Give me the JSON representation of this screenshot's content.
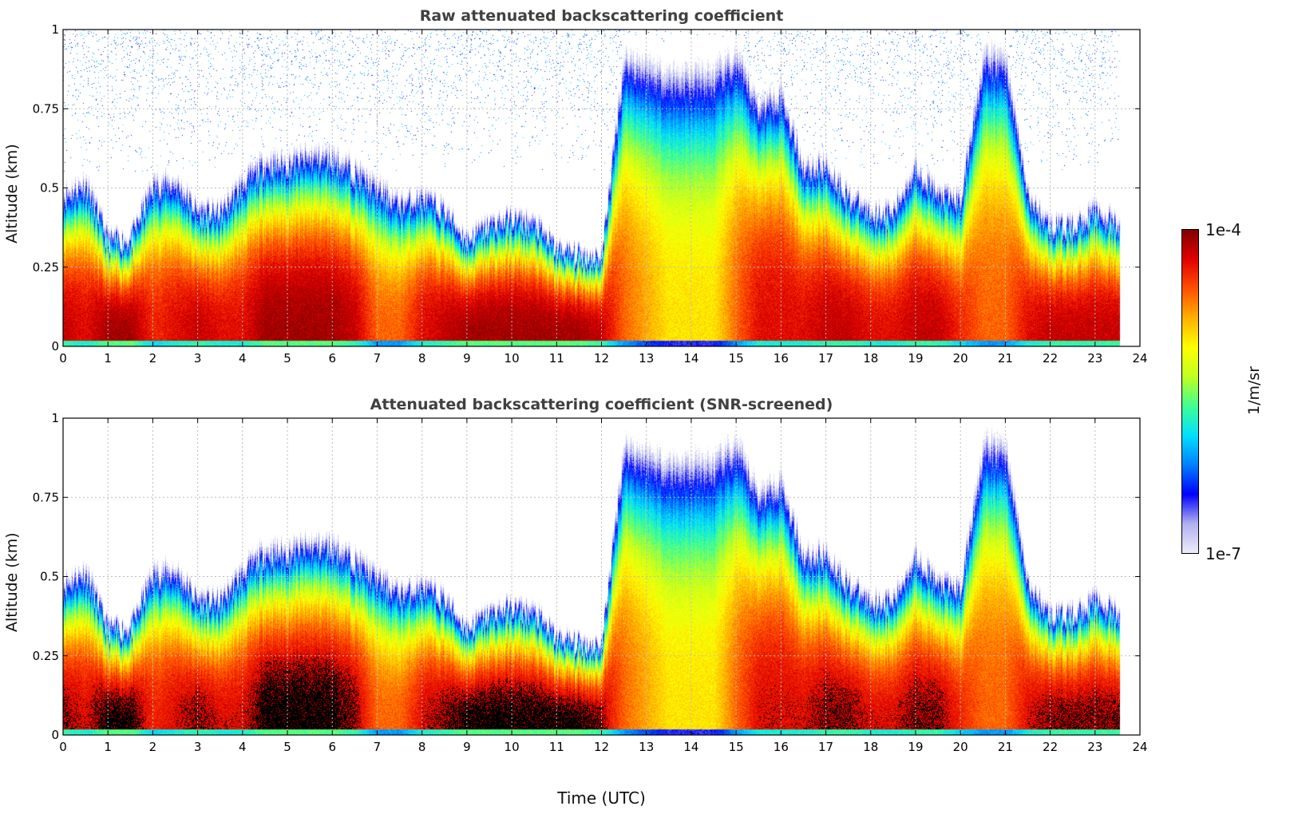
{
  "chart_data": [
    {
      "type": "heatmap",
      "title": "Raw attenuated backscattering coefficient",
      "xlabel": "",
      "ylabel": "Altitude (km)",
      "xlim": [
        0,
        24
      ],
      "ylim": [
        0,
        1
      ],
      "xticks": [
        0,
        1,
        2,
        3,
        4,
        5,
        6,
        7,
        8,
        9,
        10,
        11,
        12,
        13,
        14,
        15,
        16,
        17,
        18,
        19,
        20,
        21,
        22,
        23,
        24
      ],
      "yticks": [
        0,
        0.25,
        0.5,
        0.75,
        1
      ],
      "ytick_labels": [
        "0",
        "0.25",
        "0.5",
        "0.75",
        "1"
      ],
      "grid": true,
      "screened": false
    },
    {
      "type": "heatmap",
      "title": "Attenuated backscattering coefficient (SNR-screened)",
      "xlabel": "Time (UTC)",
      "ylabel": "Altitude (km)",
      "xlim": [
        0,
        24
      ],
      "ylim": [
        0,
        1
      ],
      "xticks": [
        0,
        1,
        2,
        3,
        4,
        5,
        6,
        7,
        8,
        9,
        10,
        11,
        12,
        13,
        14,
        15,
        16,
        17,
        18,
        19,
        20,
        21,
        22,
        23,
        24
      ],
      "yticks": [
        0,
        0.25,
        0.5,
        0.75,
        1
      ],
      "ytick_labels": [
        "0",
        "0.25",
        "0.5",
        "0.75",
        "1"
      ],
      "grid": true,
      "screened": true
    }
  ],
  "field": {
    "time_step_h": 0.5,
    "data_end_h": 23.55,
    "layer_top_km": [
      0.5,
      0.55,
      0.35,
      0.35,
      0.55,
      0.55,
      0.45,
      0.45,
      0.55,
      0.6,
      0.6,
      0.62,
      0.62,
      0.58,
      0.55,
      0.5,
      0.5,
      0.45,
      0.35,
      0.4,
      0.42,
      0.4,
      0.32,
      0.3,
      0.3,
      1.0,
      1.0,
      1.0,
      1.0,
      1.0,
      1.0,
      0.8,
      0.85,
      0.6,
      0.6,
      0.5,
      0.45,
      0.45,
      0.6,
      0.5,
      0.5,
      1.0,
      1.0,
      0.5,
      0.4,
      0.4,
      0.45,
      0.4
    ],
    "core_log10_max": [
      -4.2,
      -4.3,
      -4.1,
      -4.1,
      -4.4,
      -4.3,
      -4.2,
      -4.3,
      -4.3,
      -4.1,
      -4.1,
      -4.1,
      -4.1,
      -4.2,
      -4.6,
      -4.6,
      -4.3,
      -4.2,
      -4.1,
      -4.1,
      -4.1,
      -4.1,
      -4.1,
      -4.1,
      -4.2,
      -4.6,
      -4.8,
      -5.0,
      -5.0,
      -5.0,
      -4.6,
      -4.3,
      -4.3,
      -4.3,
      -4.2,
      -4.2,
      -4.3,
      -4.3,
      -4.2,
      -4.2,
      -4.4,
      -4.6,
      -4.6,
      -4.3,
      -4.2,
      -4.2,
      -4.2,
      -4.2
    ]
  },
  "colorbar": {
    "label": "1/m/sr",
    "min_label": "1e-7",
    "max_label": "1e-4",
    "log10_range": [
      -7,
      -4
    ],
    "colors": [
      "#ececfa",
      "#b0b0f0",
      "#0000ff",
      "#0080ff",
      "#00e0ff",
      "#40ff90",
      "#c0ff20",
      "#ffff00",
      "#ffb000",
      "#ff5000",
      "#e00000",
      "#800000"
    ]
  }
}
